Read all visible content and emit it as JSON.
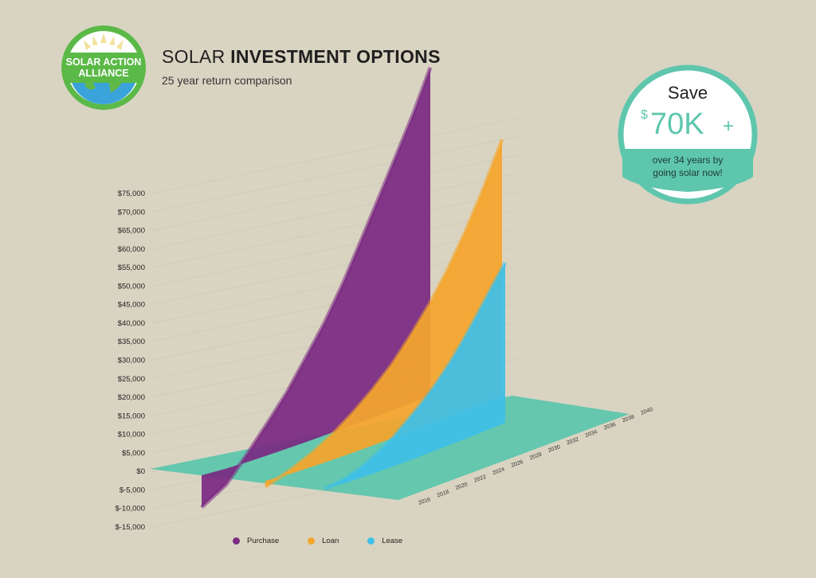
{
  "header": {
    "title_light": "SOLAR ",
    "title_bold": "INVESTMENT OPTIONS",
    "subtitle": "25 year return comparison"
  },
  "logo": {
    "line1": "SOLAR ACTION",
    "line2": "ALLIANCE",
    "colors": {
      "ring": "#5bb947",
      "sun": "#f4e49a",
      "earth": "#3aa3d9",
      "land": "#63b84a"
    }
  },
  "badge": {
    "save": "Save",
    "currency": "$",
    "amount": "70K",
    "plus": "+",
    "line1": "over 34 years by",
    "line2": "going solar now!",
    "color": "#5ec6ad"
  },
  "chart_data": {
    "type": "area",
    "title": "",
    "ylabel": "",
    "xlabel": "",
    "ylim": [
      -15000,
      75000
    ],
    "yticks": [
      "$75,000",
      "$70,000",
      "$65,000",
      "$60,000",
      "$55,000",
      "$50,000",
      "$45,000",
      "$40,000",
      "$35,000",
      "$30,000",
      "$25,000",
      "$20,000",
      "$15,000",
      "$10,000",
      "$5,000",
      "$0",
      "$-5,000",
      "$-10,000",
      "$-15,000"
    ],
    "x": [
      "2016",
      "2018",
      "2020",
      "2022",
      "2024",
      "2026",
      "2028",
      "2030",
      "2032",
      "2034",
      "2036",
      "2038",
      "2040"
    ],
    "series": [
      {
        "name": "Purchase",
        "color": "#7b2a82",
        "values": [
          -8000,
          -4000,
          2000,
          8000,
          14000,
          21000,
          28000,
          36000,
          45000,
          54000,
          63000,
          72000,
          82000
        ]
      },
      {
        "name": "Loan",
        "color": "#f4a52c",
        "values": [
          -1500,
          1000,
          3500,
          6500,
          10000,
          14000,
          18500,
          24000,
          30000,
          37000,
          45000,
          54000,
          64000
        ]
      },
      {
        "name": "Lease",
        "color": "#3ec0e8",
        "values": [
          0,
          1000,
          2500,
          4500,
          7000,
          10000,
          13000,
          16500,
          20500,
          25000,
          30000,
          35000,
          40000
        ]
      }
    ],
    "legend_position": "bottom"
  }
}
